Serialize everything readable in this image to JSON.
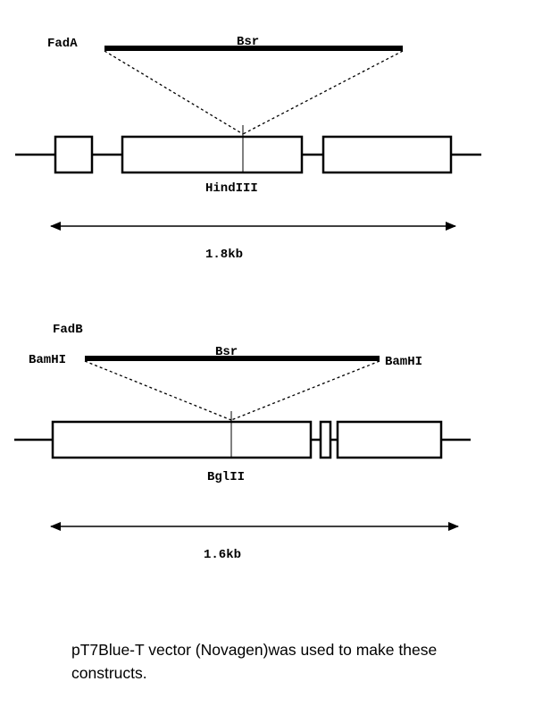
{
  "panel_a": {
    "construct_name": "FadA",
    "insert_label": "Bsr",
    "site_label": "HindIII",
    "size_label": "1.8kb"
  },
  "panel_b": {
    "construct_name": "FadB",
    "insert_label": "Bsr",
    "left_site_label": "BamHI",
    "right_site_label": "BamHI",
    "site_label": "BglII",
    "size_label": "1.6kb"
  },
  "caption": {
    "line1": "pT7Blue-T vector  (Novagen)was used to make these",
    "line2": "constructs."
  },
  "colors": {
    "ink": "#000000",
    "background": "#ffffff"
  }
}
